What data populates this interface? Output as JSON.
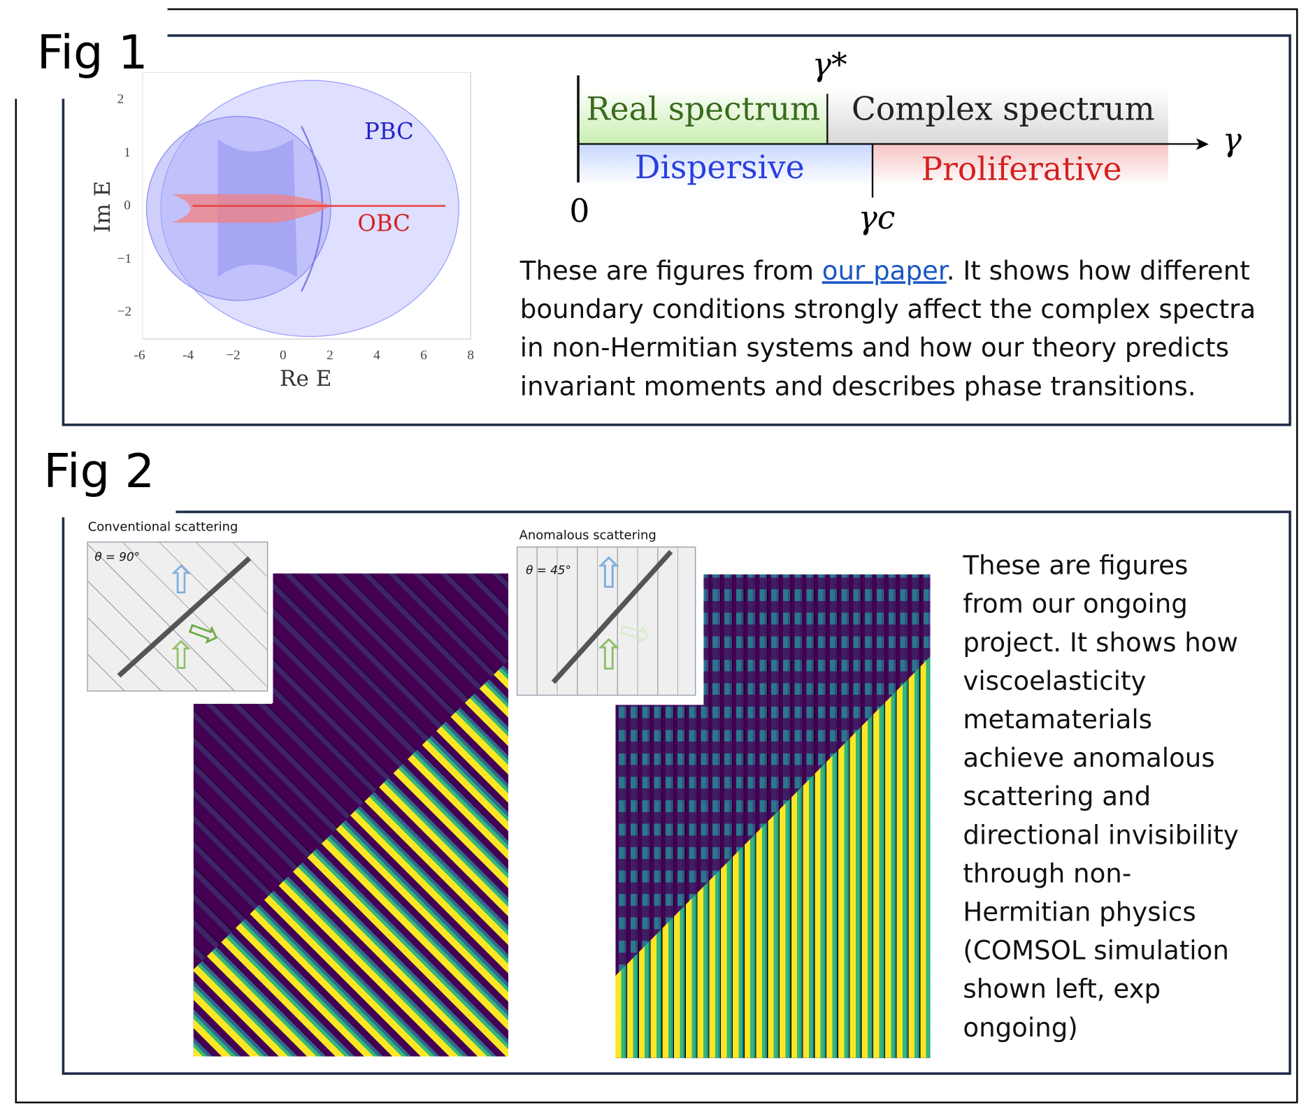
{
  "fig1": {
    "label": "Fig 1",
    "plot": {
      "xlabel": "Re E",
      "ylabel": "Im E",
      "xticks": [
        "-6",
        "-4",
        "−2",
        "0",
        "2",
        "4",
        "6",
        "8"
      ],
      "yticks": [
        "2",
        "1",
        "0",
        "−1",
        "−2"
      ],
      "pbc_label": "PBC",
      "obc_label": "OBC",
      "colors": {
        "pbc": "#8080ff",
        "obc": "#e84040"
      }
    },
    "phase_diagram": {
      "real_spectrum": "Real spectrum",
      "complex_spectrum": "Complex spectrum",
      "dispersive": "Dispersive",
      "proliferative": "Proliferative",
      "gamma_star": "γ*",
      "gamma": "γ",
      "gamma_c": "γc",
      "origin": "0"
    },
    "description_before_link": "These are figures from ",
    "link_text": "our paper",
    "description_after_link": ".  It shows how different boundary conditions strongly affect the complex spectra in non-Hermitian systems and how our theory predicts invariant moments and describes phase transitions."
  },
  "fig2": {
    "label": "Fig 2",
    "left_title": "Conventional scattering",
    "left_angle": "θ = 90°",
    "right_title": "Anomalous scattering",
    "right_angle": "θ = 45°",
    "description": "These are figures from our ongoing project.  It shows how viscoelasticity metamaterials achieve anomalous scattering and directional invisibility through non-Hermitian physics (COMSOL simulation shown left, exp ongoing)"
  }
}
